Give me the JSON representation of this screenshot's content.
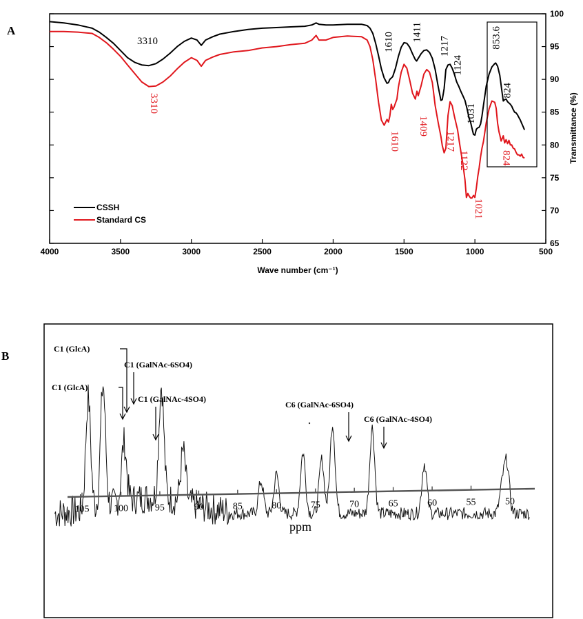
{
  "chart_data": [
    {
      "type": "line",
      "panel_label": "A",
      "xlabel": "Wave number (cm⁻¹)",
      "ylabel": "Transmittance (%)",
      "xlim": [
        4000,
        500
      ],
      "ylim": [
        65,
        100
      ],
      "x_ticks": [
        "4000",
        "3500",
        "3000",
        "2500",
        "2000",
        "1500",
        "1000",
        "500"
      ],
      "y_ticks": [
        "65",
        "70",
        "75",
        "80",
        "85",
        "90",
        "95",
        "100"
      ],
      "legend_position": "bottom-left",
      "series": [
        {
          "name": "CSSH",
          "color": "#000000",
          "x": [
            4000,
            3900,
            3800,
            3700,
            3650,
            3600,
            3550,
            3500,
            3450,
            3400,
            3350,
            3300,
            3250,
            3200,
            3150,
            3100,
            3050,
            3000,
            2960,
            2930,
            2900,
            2850,
            2800,
            2700,
            2600,
            2500,
            2400,
            2300,
            2200,
            2150,
            2120,
            2100,
            2050,
            2000,
            1900,
            1800,
            1760,
            1740,
            1720,
            1700,
            1680,
            1660,
            1640,
            1620,
            1610,
            1600,
            1580,
            1560,
            1540,
            1520,
            1500,
            1480,
            1460,
            1440,
            1420,
            1411,
            1400,
            1380,
            1360,
            1340,
            1320,
            1300,
            1280,
            1260,
            1240,
            1230,
            1217,
            1205,
            1190,
            1175,
            1160,
            1145,
            1130,
            1124,
            1115,
            1100,
            1085,
            1070,
            1055,
            1040,
            1031,
            1020,
            1010,
            1000,
            990,
            980,
            970,
            960,
            950,
            940,
            920,
            900,
            880,
            860,
            853.6,
            840,
            824,
            810,
            800,
            790,
            780,
            770,
            760,
            750,
            740,
            730,
            720,
            710,
            700,
            690,
            680,
            670,
            660,
            650
          ],
          "y": [
            98.8,
            98.6,
            98.3,
            97.8,
            97.2,
            96.4,
            95.5,
            94.4,
            93.3,
            92.6,
            92.2,
            92.1,
            92.4,
            93.1,
            94.0,
            95.0,
            95.8,
            96.3,
            96.0,
            95.2,
            96.0,
            96.5,
            96.9,
            97.3,
            97.6,
            97.8,
            97.9,
            98.0,
            98.1,
            98.3,
            98.6,
            98.4,
            98.3,
            98.3,
            98.4,
            98.4,
            98.2,
            97.8,
            97.0,
            95.5,
            93.6,
            91.6,
            90.2,
            89.4,
            89.5,
            90.0,
            90.4,
            91.7,
            93.5,
            94.9,
            95.6,
            95.5,
            94.9,
            93.9,
            93.0,
            92.8,
            93.2,
            93.9,
            94.4,
            94.5,
            94.1,
            93.2,
            91.5,
            89.0,
            86.8,
            86.9,
            88.6,
            91.5,
            92.2,
            92.3,
            91.7,
            90.8,
            89.7,
            89.4,
            89.0,
            88.2,
            87.5,
            86.8,
            85.5,
            84.0,
            83.5,
            82.5,
            81.6,
            81.5,
            82.4,
            82.6,
            82.7,
            83.2,
            84.4,
            86.0,
            89.0,
            90.8,
            91.9,
            92.4,
            92.5,
            92.0,
            90.6,
            88.3,
            86.7,
            86.9,
            87.0,
            86.6,
            86.4,
            86.2,
            85.9,
            85.4,
            85.0,
            84.9,
            84.6,
            84.2,
            83.8,
            83.3,
            82.8,
            82.3
          ]
        },
        {
          "name": "Standard CS",
          "color": "#e0161c",
          "x": [
            4000,
            3900,
            3800,
            3700,
            3650,
            3600,
            3550,
            3500,
            3450,
            3400,
            3350,
            3300,
            3250,
            3200,
            3150,
            3100,
            3050,
            3000,
            2960,
            2930,
            2900,
            2850,
            2800,
            2700,
            2600,
            2500,
            2400,
            2300,
            2200,
            2150,
            2120,
            2100,
            2050,
            2000,
            1900,
            1800,
            1760,
            1740,
            1720,
            1700,
            1680,
            1660,
            1640,
            1620,
            1610,
            1600,
            1590,
            1580,
            1570,
            1560,
            1550,
            1540,
            1520,
            1500,
            1480,
            1460,
            1440,
            1420,
            1409,
            1400,
            1380,
            1360,
            1340,
            1320,
            1300,
            1280,
            1260,
            1240,
            1230,
            1217,
            1205,
            1190,
            1175,
            1160,
            1145,
            1130,
            1122,
            1110,
            1100,
            1085,
            1070,
            1060,
            1050,
            1040,
            1030,
            1021,
            1010,
            1000,
            990,
            980,
            970,
            960,
            950,
            940,
            920,
            900,
            880,
            860,
            850,
            840,
            830,
            824,
            815,
            800,
            790,
            780,
            770,
            760,
            750,
            740,
            730,
            720,
            710,
            700,
            690,
            680,
            670,
            660,
            650
          ],
          "y": [
            97.3,
            97.3,
            97.2,
            97.0,
            96.4,
            95.6,
            94.6,
            93.5,
            92.2,
            90.9,
            89.6,
            88.9,
            89.0,
            89.6,
            90.5,
            91.6,
            92.6,
            93.3,
            92.9,
            92.0,
            92.9,
            93.4,
            93.8,
            94.2,
            94.4,
            94.8,
            95.0,
            95.3,
            95.5,
            96.0,
            96.7,
            96.0,
            96.0,
            96.4,
            96.6,
            96.5,
            96.0,
            95.0,
            93.0,
            90.0,
            86.5,
            83.8,
            83.0,
            83.9,
            83.5,
            84.4,
            86.2,
            85.4,
            85.8,
            86.4,
            87.0,
            88.8,
            91.1,
            92.3,
            91.7,
            89.9,
            87.9,
            87.0,
            88.2,
            87.5,
            89.0,
            90.8,
            91.5,
            91.1,
            89.5,
            86.0,
            83.5,
            81.3,
            79.9,
            78.8,
            79.5,
            84.5,
            86.6,
            86.0,
            84.4,
            83.0,
            82.3,
            80.5,
            79.1,
            77.1,
            74.7,
            72.0,
            72.6,
            72.2,
            71.9,
            71.9,
            72.3,
            72.0,
            73.4,
            75.2,
            76.5,
            78.2,
            79.5,
            80.5,
            83.4,
            85.5,
            86.7,
            86.5,
            85.6,
            83.3,
            82.0,
            81.5,
            80.6,
            81.4,
            80.3,
            80.8,
            80.2,
            80.7,
            80.0,
            80.0,
            79.5,
            79.4,
            78.9,
            78.5,
            78.5,
            78.3,
            78.6,
            78.1,
            78.0
          ],
          "note_annotations_ref": "peaks"
        }
      ],
      "annotations_black": [
        {
          "text": "3310",
          "x": 3310
        },
        {
          "text": "1610",
          "x": 1610
        },
        {
          "text": "1411",
          "x": 1411
        },
        {
          "text": "1217",
          "x": 1217
        },
        {
          "text": "1124",
          "x": 1124
        },
        {
          "text": "1031",
          "x": 1031
        },
        {
          "text": "853.6",
          "x": 853.6
        },
        {
          "text": "824",
          "x": 824
        }
      ],
      "annotations_red": [
        {
          "text": "3310",
          "x": 3310
        },
        {
          "text": "1610",
          "x": 1610
        },
        {
          "text": "1409",
          "x": 1409
        },
        {
          "text": "1217",
          "x": 1217
        },
        {
          "text": "1122",
          "x": 1122
        },
        {
          "text": "1021",
          "x": 1021
        },
        {
          "text": "824",
          "x": 824
        }
      ]
    },
    {
      "type": "line",
      "panel_label": "B",
      "xlabel": "ppm",
      "xlim": [
        110,
        47
      ],
      "x_ticks": [
        "105",
        "100",
        "95",
        "90",
        "85",
        "80",
        "75",
        "70",
        "65",
        "60",
        "55",
        "50"
      ],
      "peaks": [
        {
          "ppm": 104.2,
          "height": 0.62
        },
        {
          "ppm": 102.3,
          "height": 0.68
        },
        {
          "ppm": 99.6,
          "height": 0.33
        },
        {
          "ppm": 94.8,
          "height": 0.63
        },
        {
          "ppm": 92.0,
          "height": 0.28
        },
        {
          "ppm": 82.0,
          "height": 0.18
        },
        {
          "ppm": 80.0,
          "height": 0.22
        },
        {
          "ppm": 76.6,
          "height": 0.34
        },
        {
          "ppm": 74.2,
          "height": 0.3
        },
        {
          "ppm": 72.8,
          "height": 0.5
        },
        {
          "ppm": 67.7,
          "height": 0.48
        },
        {
          "ppm": 61.0,
          "height": 0.28
        },
        {
          "ppm": 51.0,
          "height": 0.15
        },
        {
          "ppm": 50.4,
          "height": 0.27
        }
      ],
      "annotations": [
        {
          "text": "C1 (GlcA)",
          "ppm": 102.8
        },
        {
          "text": "C1 (GlcA)",
          "ppm": 104.1
        },
        {
          "text": "C1 (GalNAc-6SO4)",
          "ppm": 102.3
        },
        {
          "text": "C1 (GalNAc-4SO4)",
          "ppm": 99.6
        },
        {
          "text": "C6 (GalNAc-6SO4)",
          "ppm": 72.8
        },
        {
          "text": "C6 (GalNAc-4SO4)",
          "ppm": 67.7
        }
      ]
    }
  ],
  "legend": {
    "items": [
      "CSSH",
      "Standard CS"
    ]
  }
}
